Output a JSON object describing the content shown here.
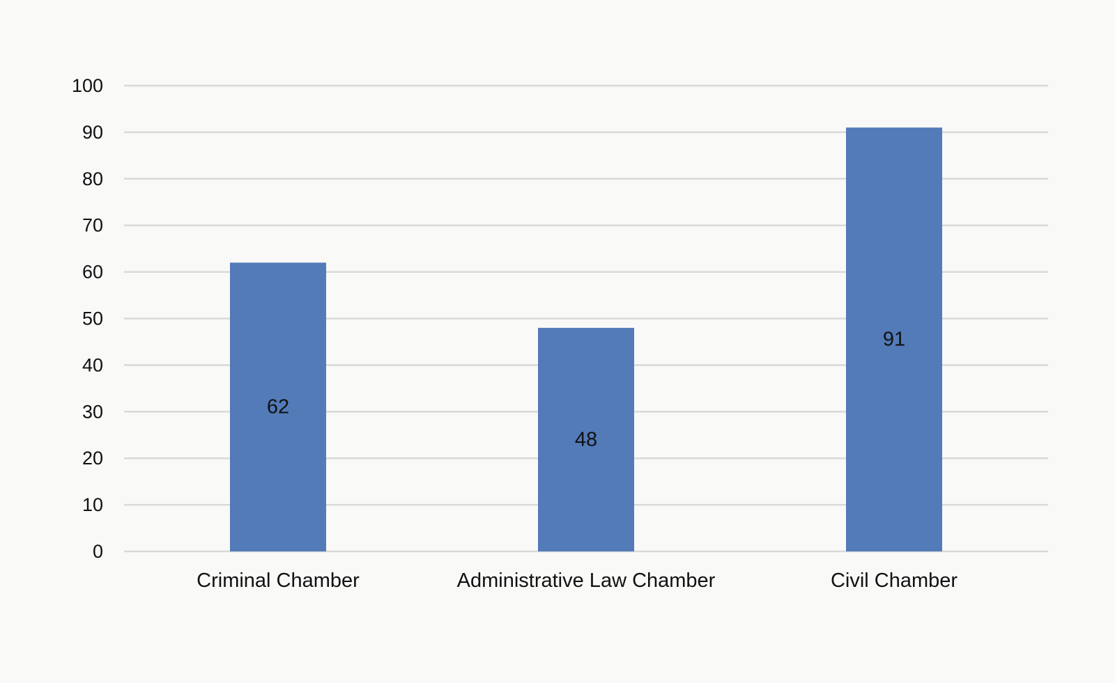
{
  "chart_data": {
    "type": "bar",
    "title": "",
    "xlabel": "",
    "ylabel": "",
    "categories": [
      "Criminal Chamber",
      "Administrative Law Chamber",
      "Civil Chamber"
    ],
    "values": [
      62,
      48,
      91
    ],
    "data_labels": [
      "62",
      "48",
      "91"
    ],
    "ylim": [
      0,
      100
    ],
    "yticks": [
      0,
      10,
      20,
      30,
      40,
      50,
      60,
      70,
      80,
      90,
      100
    ],
    "ytick_labels": [
      "0",
      "10",
      "20",
      "30",
      "40",
      "50",
      "60",
      "70",
      "80",
      "90",
      "100"
    ],
    "grid": true,
    "legend": "none",
    "colors": {
      "bar": "#527bb8",
      "grid": "#d9d9d9",
      "background": "#f9f9f8"
    }
  }
}
